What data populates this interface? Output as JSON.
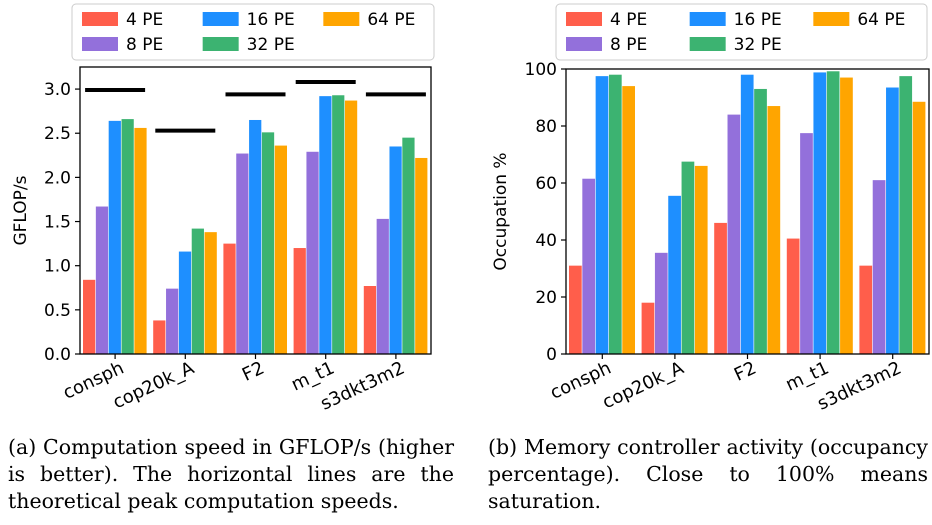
{
  "colors": {
    "4 PE": "#ff5e4b",
    "8 PE": "#9370db",
    "16 PE": "#1e8fff",
    "32 PE": "#3cb371",
    "64 PE": "#ffa500",
    "peak_line": "#000000"
  },
  "chart_data": [
    {
      "type": "bar",
      "ylabel": "GFLOP/s",
      "xlabel": "",
      "title": "",
      "ylim": [
        0,
        3.25
      ],
      "yticks": [
        "0.0",
        "0.5",
        "1.0",
        "1.5",
        "2.0",
        "2.5",
        "3.0"
      ],
      "categories": [
        "consph",
        "cop20k_A",
        "F2",
        "m_t1",
        "s3dkt3m2"
      ],
      "series": [
        {
          "name": "4 PE",
          "values": [
            0.84,
            0.38,
            1.25,
            1.2,
            0.77
          ]
        },
        {
          "name": "8 PE",
          "values": [
            1.67,
            0.74,
            2.27,
            2.29,
            1.53
          ]
        },
        {
          "name": "16 PE",
          "values": [
            2.64,
            1.16,
            2.65,
            2.92,
            2.35
          ]
        },
        {
          "name": "32 PE",
          "values": [
            2.66,
            1.42,
            2.51,
            2.93,
            2.45
          ]
        },
        {
          "name": "64 PE",
          "values": [
            2.56,
            1.38,
            2.36,
            2.87,
            2.22
          ]
        }
      ],
      "peak_lines": [
        2.99,
        2.53,
        2.94,
        3.08,
        2.94
      ],
      "legend": {
        "placement": "top",
        "ncol": 3
      },
      "grid": false
    },
    {
      "type": "bar",
      "ylabel": "Occupation %",
      "xlabel": "",
      "title": "",
      "ylim": [
        0,
        100
      ],
      "yticks": [
        "0",
        "20",
        "40",
        "60",
        "80",
        "100"
      ],
      "categories": [
        "consph",
        "cop20k_A",
        "F2",
        "m_t1",
        "s3dkt3m2"
      ],
      "series": [
        {
          "name": "4 PE",
          "values": [
            31,
            18,
            46,
            40.5,
            31
          ]
        },
        {
          "name": "8 PE",
          "values": [
            61.5,
            35.5,
            84,
            77.5,
            61
          ]
        },
        {
          "name": "16 PE",
          "values": [
            97.5,
            55.5,
            98,
            98.8,
            93.5
          ]
        },
        {
          "name": "32 PE",
          "values": [
            98,
            67.5,
            93,
            99.2,
            97.5
          ]
        },
        {
          "name": "64 PE",
          "values": [
            94,
            66,
            87,
            97,
            88.5
          ]
        }
      ],
      "legend": {
        "placement": "top",
        "ncol": 3
      },
      "grid": false
    }
  ],
  "captions": {
    "a": "(a) Computation speed in GFLOP/s (higher is better). The horizontal lines are the theoretical peak computation speeds.",
    "b": "(b) Memory controller activity (occupancy percentage). Close to 100% means saturation."
  }
}
